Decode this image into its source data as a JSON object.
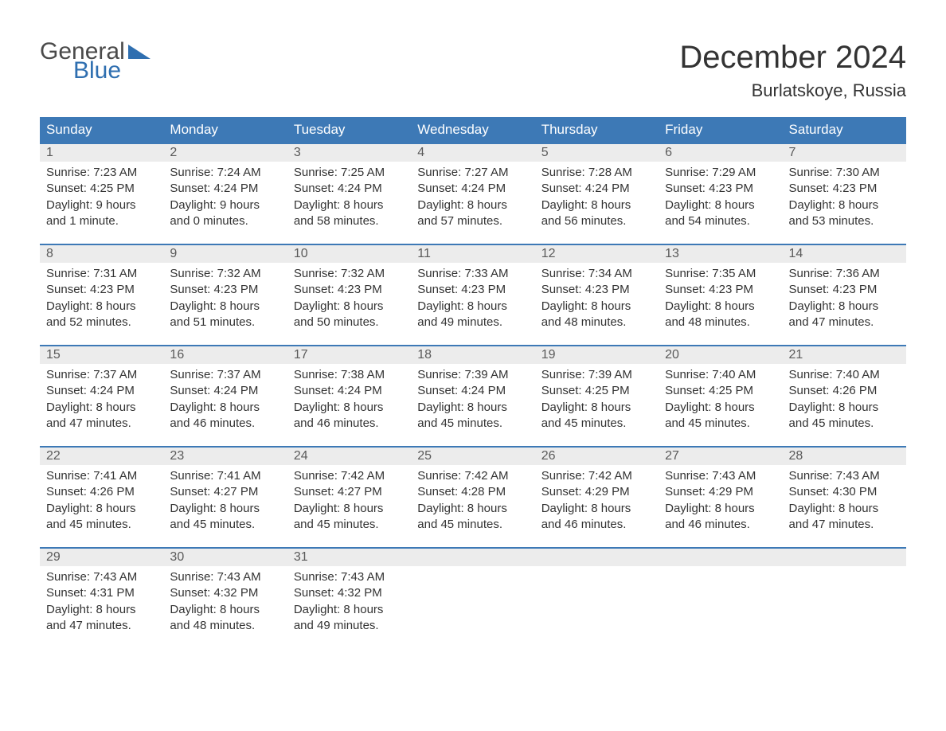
{
  "logo": {
    "text1": "General",
    "text2": "Blue",
    "accent_color": "#2f6fb0",
    "text_color": "#4a4a4a"
  },
  "header": {
    "month_title": "December 2024",
    "location": "Burlatskoye, Russia"
  },
  "styling": {
    "header_bg": "#3d79b6",
    "header_text": "#ffffff",
    "daynum_bg": "#ececec",
    "daynum_text": "#5a5a5a",
    "border_color": "#3d79b6",
    "body_text": "#333333",
    "background": "#ffffff",
    "font_family": "Arial",
    "month_title_size": 40,
    "location_size": 22,
    "weekday_size": 17,
    "detail_size": 15
  },
  "weekdays": [
    "Sunday",
    "Monday",
    "Tuesday",
    "Wednesday",
    "Thursday",
    "Friday",
    "Saturday"
  ],
  "weeks": [
    [
      {
        "day": "1",
        "sunrise": "Sunrise: 7:23 AM",
        "sunset": "Sunset: 4:25 PM",
        "d1": "Daylight: 9 hours",
        "d2": "and 1 minute."
      },
      {
        "day": "2",
        "sunrise": "Sunrise: 7:24 AM",
        "sunset": "Sunset: 4:24 PM",
        "d1": "Daylight: 9 hours",
        "d2": "and 0 minutes."
      },
      {
        "day": "3",
        "sunrise": "Sunrise: 7:25 AM",
        "sunset": "Sunset: 4:24 PM",
        "d1": "Daylight: 8 hours",
        "d2": "and 58 minutes."
      },
      {
        "day": "4",
        "sunrise": "Sunrise: 7:27 AM",
        "sunset": "Sunset: 4:24 PM",
        "d1": "Daylight: 8 hours",
        "d2": "and 57 minutes."
      },
      {
        "day": "5",
        "sunrise": "Sunrise: 7:28 AM",
        "sunset": "Sunset: 4:24 PM",
        "d1": "Daylight: 8 hours",
        "d2": "and 56 minutes."
      },
      {
        "day": "6",
        "sunrise": "Sunrise: 7:29 AM",
        "sunset": "Sunset: 4:23 PM",
        "d1": "Daylight: 8 hours",
        "d2": "and 54 minutes."
      },
      {
        "day": "7",
        "sunrise": "Sunrise: 7:30 AM",
        "sunset": "Sunset: 4:23 PM",
        "d1": "Daylight: 8 hours",
        "d2": "and 53 minutes."
      }
    ],
    [
      {
        "day": "8",
        "sunrise": "Sunrise: 7:31 AM",
        "sunset": "Sunset: 4:23 PM",
        "d1": "Daylight: 8 hours",
        "d2": "and 52 minutes."
      },
      {
        "day": "9",
        "sunrise": "Sunrise: 7:32 AM",
        "sunset": "Sunset: 4:23 PM",
        "d1": "Daylight: 8 hours",
        "d2": "and 51 minutes."
      },
      {
        "day": "10",
        "sunrise": "Sunrise: 7:32 AM",
        "sunset": "Sunset: 4:23 PM",
        "d1": "Daylight: 8 hours",
        "d2": "and 50 minutes."
      },
      {
        "day": "11",
        "sunrise": "Sunrise: 7:33 AM",
        "sunset": "Sunset: 4:23 PM",
        "d1": "Daylight: 8 hours",
        "d2": "and 49 minutes."
      },
      {
        "day": "12",
        "sunrise": "Sunrise: 7:34 AM",
        "sunset": "Sunset: 4:23 PM",
        "d1": "Daylight: 8 hours",
        "d2": "and 48 minutes."
      },
      {
        "day": "13",
        "sunrise": "Sunrise: 7:35 AM",
        "sunset": "Sunset: 4:23 PM",
        "d1": "Daylight: 8 hours",
        "d2": "and 48 minutes."
      },
      {
        "day": "14",
        "sunrise": "Sunrise: 7:36 AM",
        "sunset": "Sunset: 4:23 PM",
        "d1": "Daylight: 8 hours",
        "d2": "and 47 minutes."
      }
    ],
    [
      {
        "day": "15",
        "sunrise": "Sunrise: 7:37 AM",
        "sunset": "Sunset: 4:24 PM",
        "d1": "Daylight: 8 hours",
        "d2": "and 47 minutes."
      },
      {
        "day": "16",
        "sunrise": "Sunrise: 7:37 AM",
        "sunset": "Sunset: 4:24 PM",
        "d1": "Daylight: 8 hours",
        "d2": "and 46 minutes."
      },
      {
        "day": "17",
        "sunrise": "Sunrise: 7:38 AM",
        "sunset": "Sunset: 4:24 PM",
        "d1": "Daylight: 8 hours",
        "d2": "and 46 minutes."
      },
      {
        "day": "18",
        "sunrise": "Sunrise: 7:39 AM",
        "sunset": "Sunset: 4:24 PM",
        "d1": "Daylight: 8 hours",
        "d2": "and 45 minutes."
      },
      {
        "day": "19",
        "sunrise": "Sunrise: 7:39 AM",
        "sunset": "Sunset: 4:25 PM",
        "d1": "Daylight: 8 hours",
        "d2": "and 45 minutes."
      },
      {
        "day": "20",
        "sunrise": "Sunrise: 7:40 AM",
        "sunset": "Sunset: 4:25 PM",
        "d1": "Daylight: 8 hours",
        "d2": "and 45 minutes."
      },
      {
        "day": "21",
        "sunrise": "Sunrise: 7:40 AM",
        "sunset": "Sunset: 4:26 PM",
        "d1": "Daylight: 8 hours",
        "d2": "and 45 minutes."
      }
    ],
    [
      {
        "day": "22",
        "sunrise": "Sunrise: 7:41 AM",
        "sunset": "Sunset: 4:26 PM",
        "d1": "Daylight: 8 hours",
        "d2": "and 45 minutes."
      },
      {
        "day": "23",
        "sunrise": "Sunrise: 7:41 AM",
        "sunset": "Sunset: 4:27 PM",
        "d1": "Daylight: 8 hours",
        "d2": "and 45 minutes."
      },
      {
        "day": "24",
        "sunrise": "Sunrise: 7:42 AM",
        "sunset": "Sunset: 4:27 PM",
        "d1": "Daylight: 8 hours",
        "d2": "and 45 minutes."
      },
      {
        "day": "25",
        "sunrise": "Sunrise: 7:42 AM",
        "sunset": "Sunset: 4:28 PM",
        "d1": "Daylight: 8 hours",
        "d2": "and 45 minutes."
      },
      {
        "day": "26",
        "sunrise": "Sunrise: 7:42 AM",
        "sunset": "Sunset: 4:29 PM",
        "d1": "Daylight: 8 hours",
        "d2": "and 46 minutes."
      },
      {
        "day": "27",
        "sunrise": "Sunrise: 7:43 AM",
        "sunset": "Sunset: 4:29 PM",
        "d1": "Daylight: 8 hours",
        "d2": "and 46 minutes."
      },
      {
        "day": "28",
        "sunrise": "Sunrise: 7:43 AM",
        "sunset": "Sunset: 4:30 PM",
        "d1": "Daylight: 8 hours",
        "d2": "and 47 minutes."
      }
    ],
    [
      {
        "day": "29",
        "sunrise": "Sunrise: 7:43 AM",
        "sunset": "Sunset: 4:31 PM",
        "d1": "Daylight: 8 hours",
        "d2": "and 47 minutes."
      },
      {
        "day": "30",
        "sunrise": "Sunrise: 7:43 AM",
        "sunset": "Sunset: 4:32 PM",
        "d1": "Daylight: 8 hours",
        "d2": "and 48 minutes."
      },
      {
        "day": "31",
        "sunrise": "Sunrise: 7:43 AM",
        "sunset": "Sunset: 4:32 PM",
        "d1": "Daylight: 8 hours",
        "d2": "and 49 minutes."
      },
      {
        "day": "",
        "sunrise": "",
        "sunset": "",
        "d1": "",
        "d2": ""
      },
      {
        "day": "",
        "sunrise": "",
        "sunset": "",
        "d1": "",
        "d2": ""
      },
      {
        "day": "",
        "sunrise": "",
        "sunset": "",
        "d1": "",
        "d2": ""
      },
      {
        "day": "",
        "sunrise": "",
        "sunset": "",
        "d1": "",
        "d2": ""
      }
    ]
  ]
}
